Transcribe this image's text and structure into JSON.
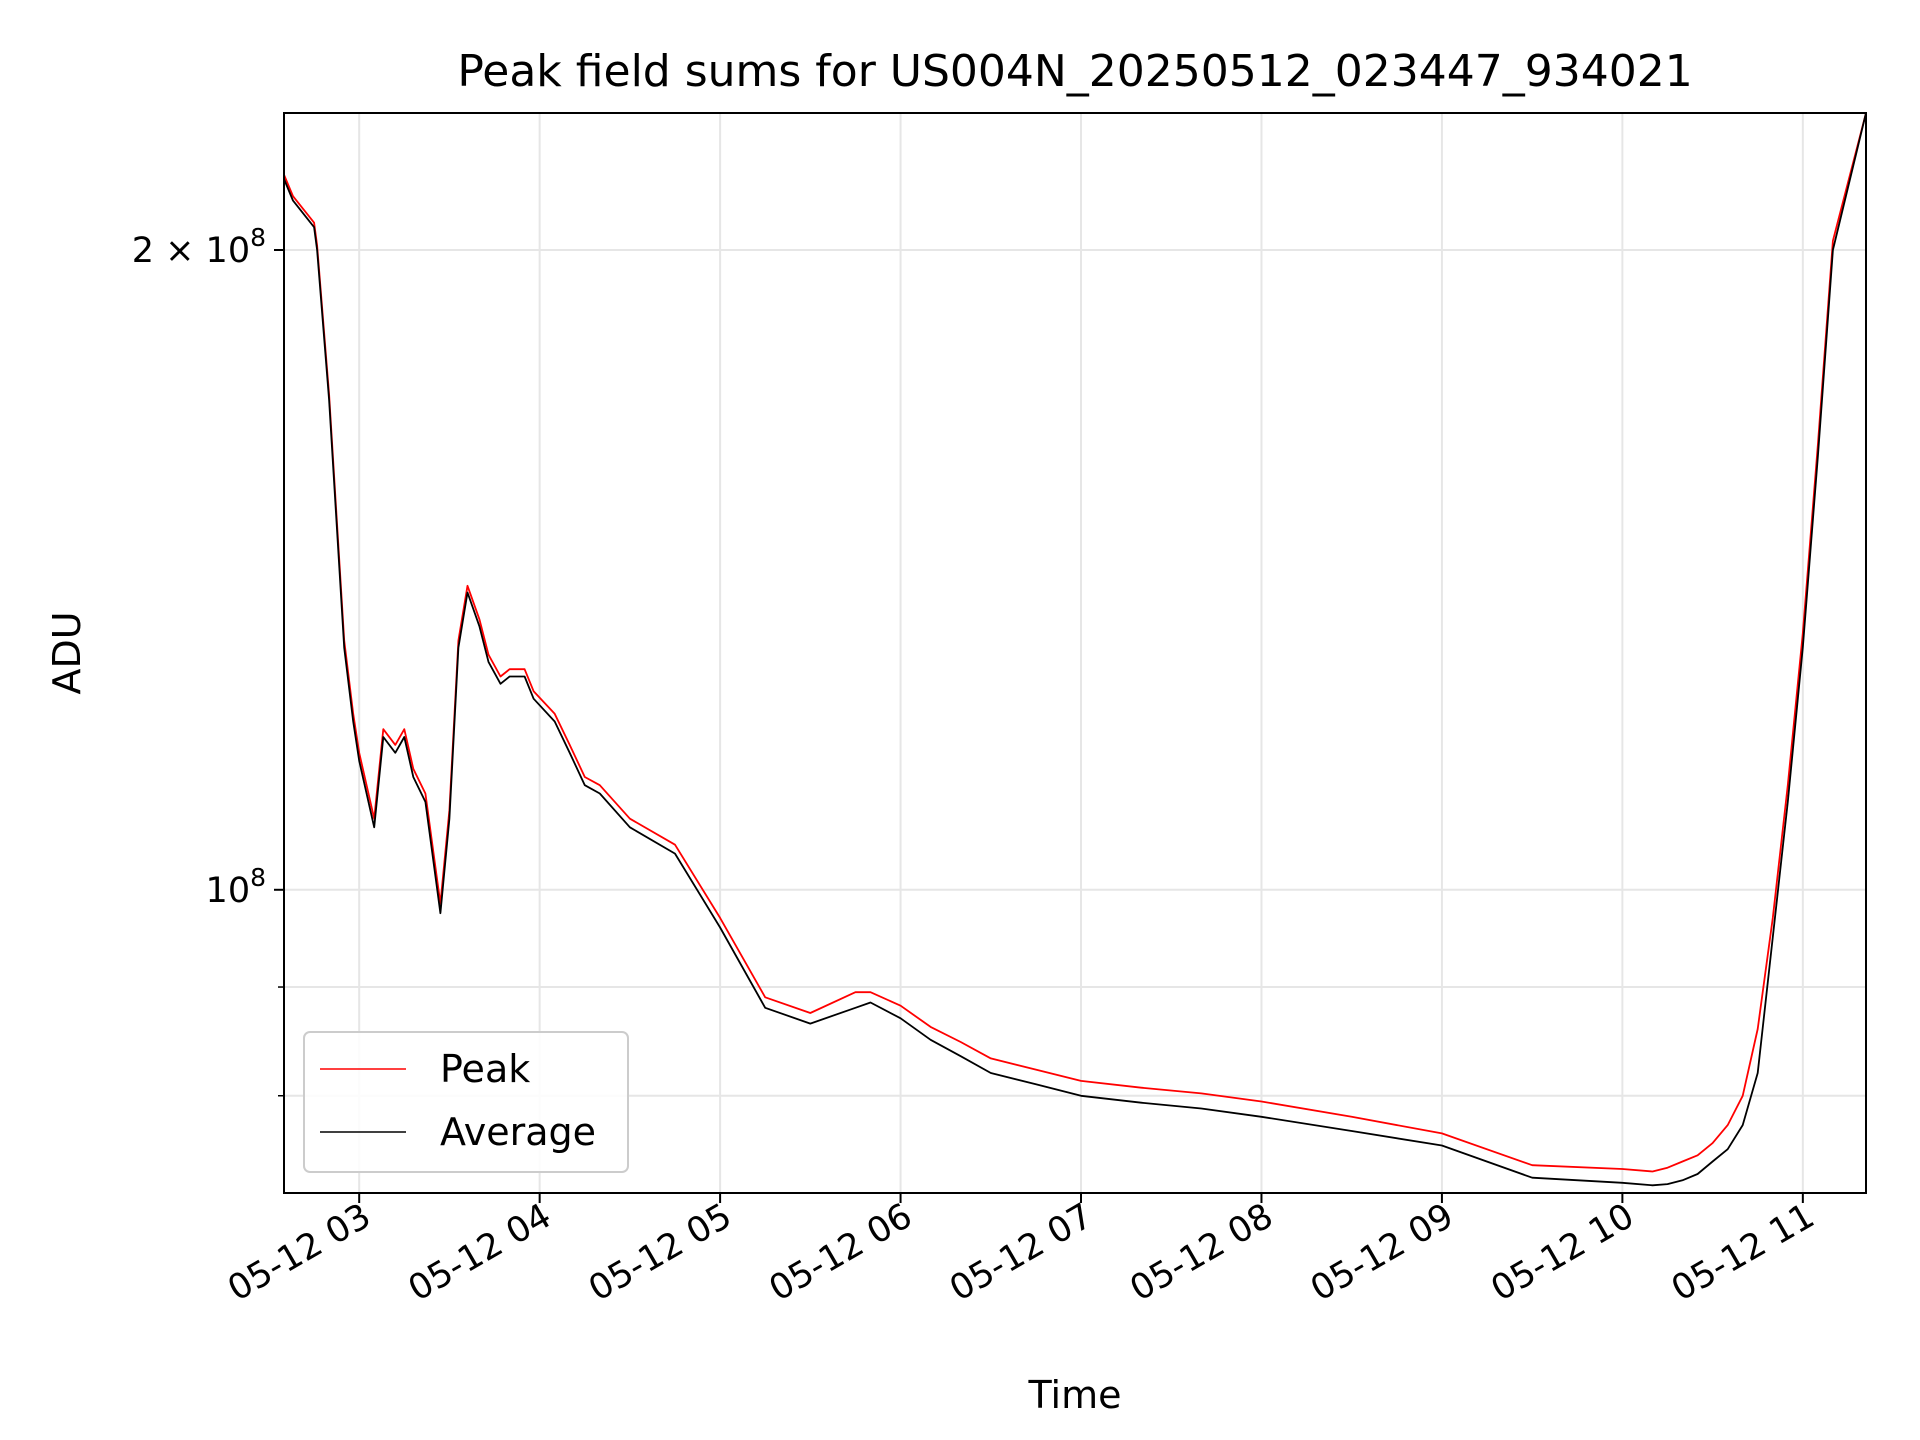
{
  "chart_data": {
    "type": "line",
    "title": "Peak field sums for US004N_20250512_023447_934021",
    "xlabel": "Time",
    "ylabel": "ADU",
    "y_scale": "log",
    "ylim": [
      72000000,
      232000000
    ],
    "xlim": [
      "05-12 02:35",
      "05-12 11:21"
    ],
    "grid": true,
    "legend_position": "lower-left",
    "x_ticks": [
      "05-12 03",
      "05-12 04",
      "05-12 05",
      "05-12 06",
      "05-12 07",
      "05-12 08",
      "05-12 09",
      "05-12 10",
      "05-12 11"
    ],
    "y_ticks": [
      {
        "value": 100000000,
        "label": "10",
        "exp": "8"
      },
      {
        "value": 200000000,
        "label": "2 × 10",
        "exp": "8"
      }
    ],
    "y_minor_ticks": [
      80000000,
      90000000
    ],
    "x": [
      "05-12 02:35",
      "05-12 02:38",
      "05-12 02:45",
      "05-12 02:46",
      "05-12 02:50",
      "05-12 02:55",
      "05-12 02:58",
      "05-12 03:00",
      "05-12 03:05",
      "05-12 03:08",
      "05-12 03:12",
      "05-12 03:15",
      "05-12 03:18",
      "05-12 03:22",
      "05-12 03:27",
      "05-12 03:30",
      "05-12 03:33",
      "05-12 03:36",
      "05-12 03:40",
      "05-12 03:43",
      "05-12 03:47",
      "05-12 03:50",
      "05-12 03:55",
      "05-12 03:58",
      "05-12 04:05",
      "05-12 04:10",
      "05-12 04:15",
      "05-12 04:20",
      "05-12 04:30",
      "05-12 04:45",
      "05-12 05:00",
      "05-12 05:15",
      "05-12 05:30",
      "05-12 05:45",
      "05-12 05:50",
      "05-12 06:00",
      "05-12 06:10",
      "05-12 06:20",
      "05-12 06:30",
      "05-12 06:45",
      "05-12 07:00",
      "05-12 07:20",
      "05-12 07:40",
      "05-12 08:00",
      "05-12 08:30",
      "05-12 09:00",
      "05-12 09:30",
      "05-12 10:00",
      "05-12 10:10",
      "05-12 10:15",
      "05-12 10:20",
      "05-12 10:25",
      "05-12 10:30",
      "05-12 10:35",
      "05-12 10:40",
      "05-12 10:45",
      "05-12 10:50",
      "05-12 10:55",
      "05-12 11:00",
      "05-12 11:05",
      "05-12 11:10",
      "05-12 11:21"
    ],
    "series": [
      {
        "name": "Average",
        "color": "#000000",
        "values": [
          216000000,
          211000000,
          205000000,
          200000000,
          170000000,
          130000000,
          120000000,
          115000000,
          107000000,
          118000000,
          116000000,
          118000000,
          113000000,
          110000000,
          97500000,
          108000000,
          130000000,
          138000000,
          133000000,
          128000000,
          125000000,
          126000000,
          126000000,
          123000000,
          120000000,
          116000000,
          112000000,
          111000000,
          107000000,
          104000000,
          96000000,
          88000000,
          86500000,
          88000000,
          88500000,
          87000000,
          85000000,
          83500000,
          82000000,
          81000000,
          80000000,
          79400000,
          78900000,
          78200000,
          77000000,
          75800000,
          73200000,
          72800000,
          72600000,
          72700000,
          73000000,
          73500000,
          74500000,
          75500000,
          77500000,
          82000000,
          95000000,
          110000000,
          130000000,
          160000000,
          200000000,
          232000000
        ]
      },
      {
        "name": "Peak",
        "color": "#ff0000",
        "values": [
          217000000,
          212000000,
          206000000,
          201000000,
          171000000,
          131000000,
          121000000,
          116000000,
          108000000,
          119000000,
          117000000,
          119000000,
          114000000,
          111000000,
          98500000,
          109000000,
          131000000,
          139000000,
          134000000,
          129000000,
          126000000,
          127000000,
          127000000,
          124000000,
          121000000,
          117000000,
          113000000,
          112000000,
          108000000,
          105000000,
          97000000,
          89000000,
          87500000,
          89500000,
          89500000,
          88200000,
          86200000,
          84800000,
          83300000,
          82300000,
          81300000,
          80700000,
          80200000,
          79500000,
          78200000,
          76800000,
          74200000,
          73900000,
          73700000,
          74000000,
          74500000,
          75000000,
          76000000,
          77500000,
          80000000,
          86000000,
          97000000,
          112000000,
          132000000,
          162000000,
          202000000,
          232000000
        ]
      }
    ]
  },
  "legend": {
    "items": [
      {
        "label": "Peak",
        "color": "#ff0000"
      },
      {
        "label": "Average",
        "color": "#000000"
      }
    ]
  }
}
